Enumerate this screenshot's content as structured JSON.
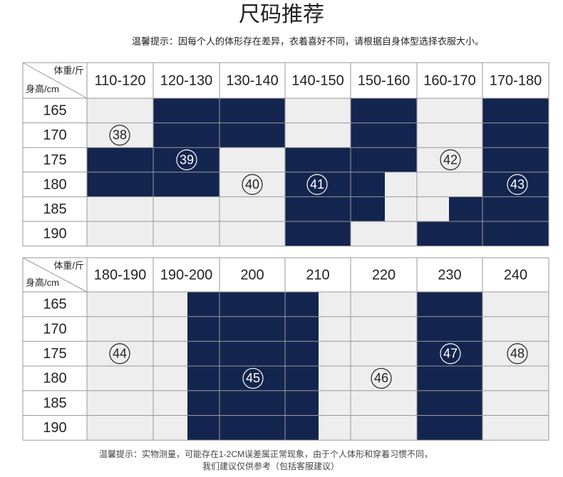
{
  "title": "尺码推荐",
  "subtitle": "温馨提示：因每个人的体形存在差异，衣着喜好不同，请根据自身体型选择衣服大小。",
  "tables": [
    {
      "corner_weight": "体重/斤",
      "corner_height": "身高/cm",
      "columns": [
        "110-120",
        "120-130",
        "130-140",
        "140-150",
        "150-160",
        "160-170",
        "170-180"
      ],
      "rows": [
        "165",
        "170",
        "175",
        "180",
        "185",
        "190"
      ],
      "sizes": [
        "38",
        "39",
        "40",
        "41",
        "42",
        "43"
      ]
    },
    {
      "corner_weight": "体重/斤",
      "corner_height": "身高/cm",
      "columns": [
        "180-190",
        "190-200",
        "200",
        "210",
        "220",
        "230",
        "240"
      ],
      "rows": [
        "165",
        "170",
        "175",
        "180",
        "185",
        "190"
      ],
      "sizes": [
        "44",
        "45",
        "46",
        "47",
        "48"
      ]
    }
  ],
  "footnote": [
    "温馨提示：实物测量，可能存在1-2CM误差属正常现象，由于个人体形和穿着习惯不同，",
    "我们建议仅供参考（包括客服建议）"
  ]
}
